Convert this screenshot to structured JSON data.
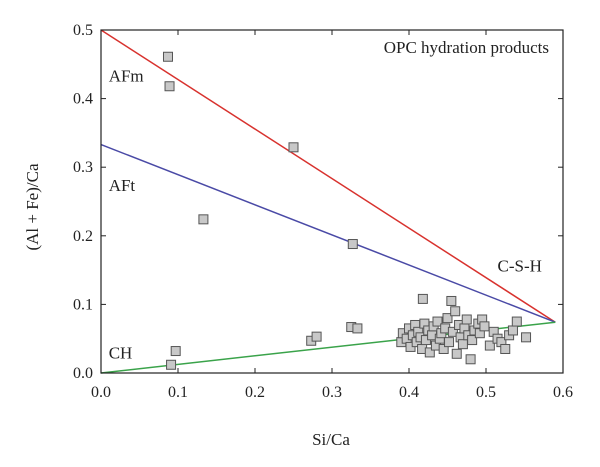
{
  "chart_data": {
    "type": "scatter",
    "title": "OPC hydration products",
    "xlabel": "Si/Ca",
    "ylabel": "(Al + Fe)/Ca",
    "xlim": [
      0.0,
      0.6
    ],
    "ylim": [
      0.0,
      0.5
    ],
    "x_ticks": [
      "0.0",
      "0.1",
      "0.2",
      "0.3",
      "0.4",
      "0.5",
      "0.6"
    ],
    "y_ticks": [
      "0.0",
      "0.1",
      "0.2",
      "0.3",
      "0.4",
      "0.5"
    ],
    "grid": false,
    "lines": [
      {
        "name": "AFm-C-S-H",
        "color": "#d8322e",
        "points": [
          [
            0.0,
            0.5
          ],
          [
            0.59,
            0.074
          ]
        ]
      },
      {
        "name": "AFt-C-S-H",
        "color": "#4a4aa6",
        "points": [
          [
            0.0,
            0.333
          ],
          [
            0.59,
            0.074
          ]
        ]
      },
      {
        "name": "CH-C-S-H",
        "color": "#3aa34a",
        "points": [
          [
            0.0,
            0.0
          ],
          [
            0.59,
            0.074
          ]
        ]
      }
    ],
    "annotations": [
      {
        "text": "AFm",
        "x": 0.01,
        "y": 0.425
      },
      {
        "text": "AFt",
        "x": 0.01,
        "y": 0.265
      },
      {
        "text": "C-S-H",
        "x": 0.515,
        "y": 0.148
      },
      {
        "text": "CH",
        "x": 0.01,
        "y": 0.021
      }
    ],
    "marker_color": "#c8c8c8",
    "points": [
      {
        "x": 0.087,
        "y": 0.461
      },
      {
        "x": 0.089,
        "y": 0.418
      },
      {
        "x": 0.25,
        "y": 0.329
      },
      {
        "x": 0.133,
        "y": 0.224
      },
      {
        "x": 0.327,
        "y": 0.188
      },
      {
        "x": 0.091,
        "y": 0.012
      },
      {
        "x": 0.097,
        "y": 0.032
      },
      {
        "x": 0.273,
        "y": 0.047
      },
      {
        "x": 0.28,
        "y": 0.053
      },
      {
        "x": 0.325,
        "y": 0.067
      },
      {
        "x": 0.333,
        "y": 0.065
      },
      {
        "x": 0.39,
        "y": 0.045
      },
      {
        "x": 0.392,
        "y": 0.058
      },
      {
        "x": 0.397,
        "y": 0.05
      },
      {
        "x": 0.4,
        "y": 0.065
      },
      {
        "x": 0.402,
        "y": 0.038
      },
      {
        "x": 0.405,
        "y": 0.055
      },
      {
        "x": 0.408,
        "y": 0.07
      },
      {
        "x": 0.41,
        "y": 0.045
      },
      {
        "x": 0.412,
        "y": 0.06
      },
      {
        "x": 0.415,
        "y": 0.052
      },
      {
        "x": 0.417,
        "y": 0.035
      },
      {
        "x": 0.418,
        "y": 0.108
      },
      {
        "x": 0.42,
        "y": 0.072
      },
      {
        "x": 0.422,
        "y": 0.048
      },
      {
        "x": 0.425,
        "y": 0.062
      },
      {
        "x": 0.427,
        "y": 0.03
      },
      {
        "x": 0.43,
        "y": 0.055
      },
      {
        "x": 0.432,
        "y": 0.068
      },
      {
        "x": 0.435,
        "y": 0.04
      },
      {
        "x": 0.437,
        "y": 0.075
      },
      {
        "x": 0.44,
        "y": 0.05
      },
      {
        "x": 0.442,
        "y": 0.058
      },
      {
        "x": 0.445,
        "y": 0.035
      },
      {
        "x": 0.447,
        "y": 0.065
      },
      {
        "x": 0.45,
        "y": 0.08
      },
      {
        "x": 0.452,
        "y": 0.045
      },
      {
        "x": 0.455,
        "y": 0.105
      },
      {
        "x": 0.457,
        "y": 0.06
      },
      {
        "x": 0.46,
        "y": 0.09
      },
      {
        "x": 0.462,
        "y": 0.028
      },
      {
        "x": 0.465,
        "y": 0.07
      },
      {
        "x": 0.467,
        "y": 0.052
      },
      {
        "x": 0.47,
        "y": 0.042
      },
      {
        "x": 0.472,
        "y": 0.065
      },
      {
        "x": 0.475,
        "y": 0.078
      },
      {
        "x": 0.477,
        "y": 0.055
      },
      {
        "x": 0.48,
        "y": 0.02
      },
      {
        "x": 0.482,
        "y": 0.048
      },
      {
        "x": 0.485,
        "y": 0.062
      },
      {
        "x": 0.49,
        "y": 0.072
      },
      {
        "x": 0.492,
        "y": 0.058
      },
      {
        "x": 0.495,
        "y": 0.078
      },
      {
        "x": 0.498,
        "y": 0.068
      },
      {
        "x": 0.505,
        "y": 0.04
      },
      {
        "x": 0.51,
        "y": 0.06
      },
      {
        "x": 0.515,
        "y": 0.05
      },
      {
        "x": 0.52,
        "y": 0.045
      },
      {
        "x": 0.525,
        "y": 0.035
      },
      {
        "x": 0.53,
        "y": 0.055
      },
      {
        "x": 0.535,
        "y": 0.062
      },
      {
        "x": 0.54,
        "y": 0.075
      },
      {
        "x": 0.552,
        "y": 0.052
      }
    ]
  }
}
